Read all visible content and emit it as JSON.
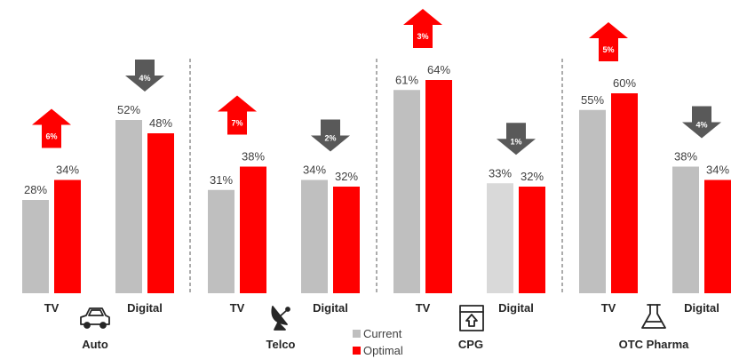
{
  "colors": {
    "current": "#bfbfbf",
    "current_light": "#d9d9d9",
    "optimal": "#ff0000",
    "arrow_up": "#ff0000",
    "arrow_down": "#595959",
    "divider": "#595959",
    "icon": "#262626"
  },
  "legend": {
    "current": "Current",
    "optimal": "Optimal"
  },
  "chart_data": {
    "type": "bar",
    "series": [
      {
        "name": "Current",
        "key": "current"
      },
      {
        "name": "Optimal",
        "key": "optimal"
      }
    ],
    "groups": [
      {
        "name": "Auto",
        "icon": "car-icon",
        "categories": [
          {
            "label": "TV",
            "current": 28,
            "current_label": "28%",
            "optimal": 34,
            "optimal_label": "34%",
            "change": "up",
            "change_label": "6%"
          },
          {
            "label": "Digital",
            "current": 52,
            "current_label": "52%",
            "optimal": 48,
            "optimal_label": "48%",
            "change": "down",
            "change_label": "4%"
          }
        ]
      },
      {
        "name": "Telco",
        "icon": "satellite-dish-icon",
        "categories": [
          {
            "label": "TV",
            "current": 31,
            "current_label": "31%",
            "optimal": 38,
            "optimal_label": "38%",
            "change": "up",
            "change_label": "7%"
          },
          {
            "label": "Digital",
            "current": 34,
            "current_label": "34%",
            "optimal": 32,
            "optimal_label": "32%",
            "change": "down",
            "change_label": "2%"
          }
        ]
      },
      {
        "name": "CPG",
        "icon": "package-icon",
        "categories": [
          {
            "label": "TV",
            "current": 61,
            "current_label": "61%",
            "optimal": 64,
            "optimal_label": "64%",
            "change": "up",
            "change_label": "3%"
          },
          {
            "label": "Digital",
            "current": 33,
            "current_label": "33%",
            "optimal": 32,
            "optimal_label": "32%",
            "change": "down",
            "change_label": "1%"
          }
        ]
      },
      {
        "name": "OTC Pharma",
        "icon": "flask-icon",
        "categories": [
          {
            "label": "TV",
            "current": 55,
            "current_label": "55%",
            "optimal": 60,
            "optimal_label": "60%",
            "change": "up",
            "change_label": "5%"
          },
          {
            "label": "Digital",
            "current": 38,
            "current_label": "38%",
            "optimal": 34,
            "optimal_label": "34%",
            "change": "down",
            "change_label": "4%"
          }
        ]
      }
    ]
  }
}
